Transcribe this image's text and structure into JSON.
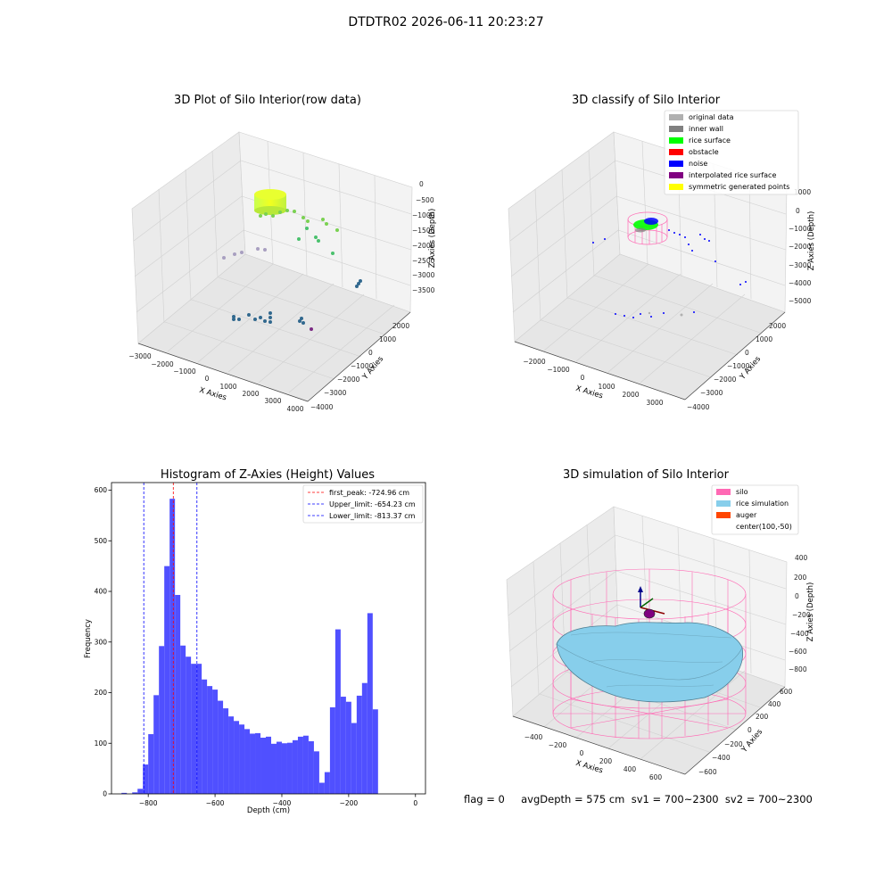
{
  "figure_title": "DTDTR02 2026-06-11 20:23:27",
  "footer_text": "flag = 0     avgDepth = 575 cm  sv1 = 700~2300  sv2 = 700~2300",
  "chart_data": [
    {
      "type": "scatter",
      "projection": "3d",
      "title": "3D Plot of Silo Interior(row data)",
      "xlabel": "X Axies",
      "ylabel": "Y Axies",
      "zlabel": "Z Axies (Depth)",
      "xticks": [
        "−3000",
        "−2000",
        "−1000",
        "0",
        "1000",
        "2000",
        "3000",
        "4000"
      ],
      "yticks": [
        "2000",
        "1000",
        "0",
        "−1000",
        "−2000",
        "−3000",
        "−4000"
      ],
      "zticks": [
        "0",
        "−500",
        "−1000",
        "−1500",
        "−2000",
        "−2500",
        "−3000",
        "−3500"
      ],
      "xlim": [
        -3000,
        4000
      ],
      "ylim": [
        -4000,
        2000
      ],
      "zlim": [
        -3700,
        0
      ],
      "grid": true,
      "colormap": "viridis"
    },
    {
      "type": "scatter",
      "projection": "3d",
      "title": "3D classify of Silo Interior",
      "xlabel": "X Axies",
      "ylabel": "Y Axies",
      "zlabel": "Z Axies (Depth)",
      "xticks": [
        "−2000",
        "−1000",
        "0",
        "1000",
        "2000",
        "3000"
      ],
      "yticks": [
        "2000",
        "1000",
        "0",
        "−1000",
        "−2000",
        "−3000",
        "−4000"
      ],
      "zticks": [
        "1000",
        "0",
        "−1000",
        "−2000",
        "−3000",
        "−4000",
        "−5000"
      ],
      "xlim": [
        -2500,
        3500
      ],
      "ylim": [
        -4000,
        2000
      ],
      "zlim": [
        -5000,
        1000
      ],
      "grid": true,
      "legend_position": "upper right",
      "legend": [
        {
          "label": "original data",
          "color": "#b0b0b0"
        },
        {
          "label": "inner wall",
          "color": "#808080"
        },
        {
          "label": "rice surface",
          "color": "#00ff00"
        },
        {
          "label": "obstacle",
          "color": "#ff0000"
        },
        {
          "label": "noise",
          "color": "#0000ff"
        },
        {
          "label": "interpolated rice surface",
          "color": "#800080"
        },
        {
          "label": "symmetric generated points",
          "color": "#ffff00"
        }
      ]
    },
    {
      "type": "bar",
      "title": "Histogram of Z-Axies (Height) Values",
      "xlabel": "Depth (cm)",
      "ylabel": "Frequency",
      "bar_color": "#5050ff",
      "bin_width": 16,
      "bin_start": -880,
      "values": [
        2,
        0,
        3,
        10,
        58,
        118,
        195,
        292,
        450,
        583,
        393,
        293,
        271,
        257,
        257,
        226,
        213,
        206,
        184,
        169,
        153,
        144,
        137,
        128,
        119,
        120,
        111,
        113,
        99,
        103,
        100,
        101,
        106,
        113,
        115,
        104,
        84,
        22,
        43,
        171,
        325,
        192,
        182,
        140,
        194,
        219,
        357,
        167
      ],
      "xlim": [
        -910,
        30
      ],
      "ylim": [
        0,
        615
      ],
      "xticks": [
        -800,
        -600,
        -400,
        -200,
        0
      ],
      "xtick_labels": [
        "−800",
        "−600",
        "−400",
        "−200",
        "0"
      ],
      "yticks": [
        0,
        100,
        200,
        300,
        400,
        500,
        600
      ],
      "lines": [
        {
          "x": -724.96,
          "color": "#ff0000",
          "label": "first_peak: -724.96 cm"
        },
        {
          "x": -654.23,
          "color": "#0000ff",
          "label": "Upper_limit: -654.23 cm"
        },
        {
          "x": -813.37,
          "color": "#0000ff",
          "label": "Lower_limit: -813.37 cm"
        }
      ],
      "legend_position": "upper right",
      "grid": false
    },
    {
      "type": "area",
      "projection": "3d",
      "title": "3D simulation of Silo Interior",
      "xlabel": "X Axies",
      "ylabel": "Y Axies",
      "zlabel": "Z Axies (Depth)",
      "xticks": [
        "−400",
        "−200",
        "0",
        "200",
        "400",
        "600"
      ],
      "yticks": [
        "600",
        "400",
        "200",
        "0",
        "−200",
        "−400",
        "−600"
      ],
      "zticks": [
        "400",
        "200",
        "0",
        "−200",
        "−400",
        "−600",
        "−800"
      ],
      "xlim": [
        -500,
        700
      ],
      "ylim": [
        -700,
        700
      ],
      "zlim": [
        -900,
        500
      ],
      "grid": true,
      "legend_position": "upper right",
      "legend": [
        {
          "label": "silo",
          "color": "#ff69b4"
        },
        {
          "label": "rice simulation",
          "color": "#87ceeb"
        },
        {
          "label": "auger",
          "color": "#ff4500"
        },
        {
          "label": "center(100,-50)",
          "color": ""
        }
      ]
    }
  ]
}
